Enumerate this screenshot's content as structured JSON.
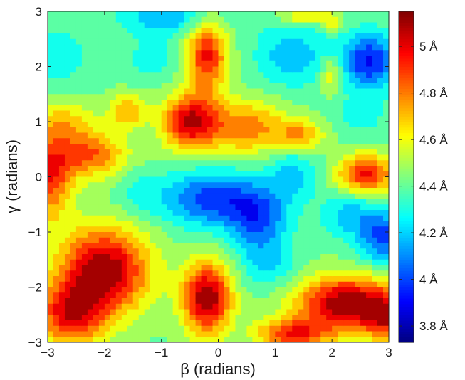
{
  "chart_data": {
    "type": "heatmap",
    "xlabel": "β (radians)",
    "ylabel": "γ (radians)",
    "xlim": [
      -3,
      3
    ],
    "ylim": [
      -3,
      3
    ],
    "x_ticks": [
      "−3",
      "−2",
      "−1",
      "0",
      "1",
      "2",
      "3"
    ],
    "y_ticks": [
      "−3",
      "−2",
      "−1",
      "0",
      "1",
      "2",
      "3"
    ],
    "colorbar": {
      "range": [
        3.73,
        5.15
      ],
      "tick_values": [
        3.8,
        4.0,
        4.2,
        4.4,
        4.6,
        4.8,
        5.0
      ],
      "tick_labels": [
        "3.8 Å",
        "4 Å",
        "4.2 Å",
        "4.4 Å",
        "4.6 Å",
        "4.8 Å",
        "5 Å"
      ],
      "colormap": "jet"
    },
    "baseline": 4.42,
    "features": [
      {
        "kind": "peak",
        "x": 2.65,
        "y": 2.1,
        "amp": -0.5,
        "sx": 0.35,
        "sy": 0.35
      },
      {
        "kind": "peak",
        "x": 1.3,
        "y": 2.2,
        "amp": -0.25,
        "sx": 0.45,
        "sy": 0.4
      },
      {
        "kind": "peak",
        "x": -0.9,
        "y": 2.9,
        "amp": -0.25,
        "sx": 0.6,
        "sy": 0.25
      },
      {
        "kind": "peak",
        "x": -2.8,
        "y": 2.2,
        "amp": -0.18,
        "sx": 0.3,
        "sy": 0.35
      },
      {
        "kind": "peak",
        "x": -1.2,
        "y": 2.1,
        "amp": -0.12,
        "sx": 0.35,
        "sy": 0.3
      },
      {
        "kind": "peak",
        "x": -0.2,
        "y": 2.2,
        "amp": 0.55,
        "sx": 0.25,
        "sy": 0.45
      },
      {
        "kind": "peak",
        "x": -0.5,
        "y": 1.0,
        "amp": 0.62,
        "sx": 0.35,
        "sy": 0.35
      },
      {
        "kind": "peak",
        "x": 0.5,
        "y": 0.9,
        "amp": 0.38,
        "sx": 0.5,
        "sy": 0.35
      },
      {
        "kind": "peak",
        "x": -2.25,
        "y": 0.4,
        "amp": 0.42,
        "sx": 0.45,
        "sy": 0.3
      },
      {
        "kind": "peak",
        "x": -3.0,
        "y": 0.0,
        "amp": 0.5,
        "sx": 0.3,
        "sy": 0.55
      },
      {
        "kind": "peak",
        "x": -2.7,
        "y": 1.0,
        "amp": 0.22,
        "sx": 0.4,
        "sy": 0.3
      },
      {
        "kind": "peak",
        "x": -1.6,
        "y": 1.2,
        "amp": 0.32,
        "sx": 0.22,
        "sy": 0.22
      },
      {
        "kind": "peak",
        "x": 1.45,
        "y": 0.75,
        "amp": 0.32,
        "sx": 0.3,
        "sy": 0.2
      },
      {
        "kind": "peak",
        "x": 2.6,
        "y": 0.05,
        "amp": 0.55,
        "sx": 0.35,
        "sy": 0.25
      },
      {
        "kind": "peak",
        "x": 2.0,
        "y": 1.85,
        "amp": 0.25,
        "sx": 0.15,
        "sy": 0.25
      },
      {
        "kind": "peak",
        "x": -2.0,
        "y": -1.7,
        "amp": 0.72,
        "sx": 0.55,
        "sy": 0.55
      },
      {
        "kind": "peak",
        "x": -2.6,
        "y": -2.5,
        "amp": 0.55,
        "sx": 0.4,
        "sy": 0.4
      },
      {
        "kind": "peak",
        "x": -0.2,
        "y": -2.2,
        "amp": 0.72,
        "sx": 0.3,
        "sy": 0.45
      },
      {
        "kind": "peak",
        "x": 2.25,
        "y": -2.3,
        "amp": 0.72,
        "sx": 0.6,
        "sy": 0.35
      },
      {
        "kind": "peak",
        "x": 1.3,
        "y": -2.85,
        "amp": 0.5,
        "sx": 0.45,
        "sy": 0.2
      },
      {
        "kind": "peak",
        "x": 3.0,
        "y": -2.55,
        "amp": 0.45,
        "sx": 0.3,
        "sy": 0.3
      },
      {
        "kind": "peak",
        "x": -0.1,
        "y": -0.4,
        "amp": -0.45,
        "sx": 0.6,
        "sy": 0.35
      },
      {
        "kind": "peak",
        "x": 0.7,
        "y": -0.8,
        "amp": -0.38,
        "sx": 0.35,
        "sy": 0.4
      },
      {
        "kind": "peak",
        "x": 1.3,
        "y": 0.05,
        "amp": -0.22,
        "sx": 0.3,
        "sy": 0.35
      },
      {
        "kind": "peak",
        "x": 2.9,
        "y": -1.1,
        "amp": -0.4,
        "sx": 0.3,
        "sy": 0.35
      },
      {
        "kind": "peak",
        "x": 2.3,
        "y": -0.7,
        "amp": -0.22,
        "sx": 0.35,
        "sy": 0.3
      },
      {
        "kind": "peak",
        "x": 0.9,
        "y": -1.6,
        "amp": -0.18,
        "sx": 0.35,
        "sy": 0.3
      },
      {
        "kind": "peak",
        "x": 2.5,
        "y": 1.1,
        "amp": -0.12,
        "sx": 0.35,
        "sy": 0.3
      },
      {
        "kind": "peak",
        "x": -1.4,
        "y": -0.3,
        "amp": -0.12,
        "sx": 0.3,
        "sy": 0.3
      },
      {
        "kind": "peak",
        "x": 1.5,
        "y": 2.9,
        "amp": 0.25,
        "sx": 0.3,
        "sy": 0.1
      },
      {
        "kind": "peak",
        "x": 2.0,
        "y": 2.8,
        "amp": 0.2,
        "sx": 0.12,
        "sy": 0.12
      }
    ]
  }
}
